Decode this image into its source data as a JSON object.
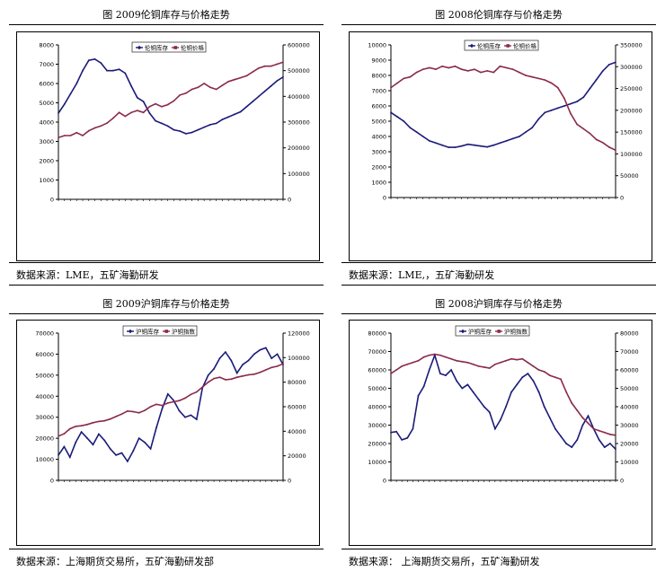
{
  "panels": [
    {
      "title": "图  2009伦铜库存与价格走势",
      "source": "数据来源：LME，五矿海勤研发"
    },
    {
      "title": "图  2008伦铜库存与价格走势",
      "source": "数据来源：LME,，五矿海勤研发"
    },
    {
      "title": "图  2009沪铜库存与价格走势",
      "source": "数据来源：上海期货交易所，五矿海勤研发部"
    },
    {
      "title": "图       2008沪铜库存与价格走势",
      "source": "数据来源：    上海期货交易所，五矿海勤研发"
    }
  ],
  "colors": {
    "inventory": "#1a1a7a",
    "price": "#8a2a4a"
  },
  "chart_data": [
    {
      "type": "line",
      "title": "",
      "y_left": {
        "lim": [
          0,
          8000
        ],
        "ticks": [
          0,
          1000,
          2000,
          3000,
          4000,
          5000,
          6000,
          7000,
          8000
        ]
      },
      "y_right": {
        "lim": [
          0,
          600000
        ],
        "ticks": [
          0,
          100000,
          200000,
          300000,
          400000,
          500000,
          600000
        ]
      },
      "legend": [
        "伦铜库存",
        "伦铜价格"
      ],
      "legend_position": "top-center",
      "series": [
        {
          "name": "伦铜库存",
          "axis": "right",
          "values": [
            335000,
            370000,
            410000,
            450000,
            500000,
            540000,
            545000,
            530000,
            500000,
            500000,
            505000,
            490000,
            440000,
            395000,
            380000,
            335000,
            305000,
            295000,
            285000,
            270000,
            265000,
            255000,
            260000,
            270000,
            280000,
            290000,
            295000,
            310000,
            320000,
            330000,
            340000,
            360000,
            380000,
            400000,
            420000,
            440000,
            460000,
            475000
          ]
        },
        {
          "name": "伦铜价格",
          "axis": "left",
          "values": [
            3200,
            3300,
            3300,
            3450,
            3300,
            3550,
            3700,
            3800,
            3950,
            4200,
            4500,
            4300,
            4500,
            4600,
            4500,
            4800,
            4950,
            4800,
            4900,
            5100,
            5400,
            5500,
            5700,
            5800,
            6000,
            5800,
            5700,
            5900,
            6100,
            6200,
            6300,
            6400,
            6600,
            6800,
            6900,
            6900,
            7000,
            7100
          ]
        }
      ]
    },
    {
      "type": "line",
      "title": "",
      "y_left": {
        "lim": [
          0,
          10000
        ],
        "ticks": [
          0,
          1000,
          2000,
          3000,
          4000,
          5000,
          6000,
          7000,
          8000,
          9000,
          10000
        ]
      },
      "y_right": {
        "lim": [
          0,
          350000
        ],
        "ticks": [
          0,
          50000,
          100000,
          150000,
          200000,
          250000,
          300000,
          350000
        ]
      },
      "legend": [
        "伦铜库存",
        "伦铜价格"
      ],
      "legend_position": "top-center",
      "series": [
        {
          "name": "伦铜库存",
          "axis": "right",
          "values": [
            195000,
            185000,
            175000,
            160000,
            150000,
            140000,
            130000,
            125000,
            120000,
            115000,
            115000,
            118000,
            122000,
            120000,
            118000,
            116000,
            120000,
            125000,
            130000,
            135000,
            140000,
            150000,
            160000,
            180000,
            195000,
            200000,
            205000,
            210000,
            215000,
            220000,
            230000,
            250000,
            270000,
            290000,
            305000,
            310000
          ]
        },
        {
          "name": "伦铜价格",
          "axis": "left",
          "values": [
            7200,
            7500,
            7800,
            7900,
            8200,
            8400,
            8500,
            8400,
            8600,
            8500,
            8600,
            8400,
            8300,
            8400,
            8200,
            8300,
            8200,
            8600,
            8500,
            8400,
            8200,
            8000,
            7900,
            7800,
            7700,
            7500,
            7200,
            6500,
            5500,
            4800,
            4500,
            4200,
            3800,
            3600,
            3300,
            3100
          ]
        }
      ]
    },
    {
      "type": "line",
      "title": "",
      "y_left": {
        "lim": [
          0,
          70000
        ],
        "ticks": [
          0,
          10000,
          20000,
          30000,
          40000,
          50000,
          60000,
          70000
        ]
      },
      "y_right": {
        "lim": [
          0,
          120000
        ],
        "ticks": [
          0,
          20000,
          40000,
          60000,
          80000,
          100000,
          120000
        ]
      },
      "legend": [
        "沪铜库存",
        "沪铜指数"
      ],
      "legend_position": "top-center",
      "series": [
        {
          "name": "沪铜库存",
          "axis": "left",
          "values": [
            12000,
            16000,
            11000,
            18000,
            23000,
            20000,
            17000,
            22000,
            19000,
            15000,
            12000,
            13000,
            9000,
            14000,
            20000,
            18000,
            15000,
            25000,
            34000,
            41000,
            38000,
            33000,
            30000,
            31000,
            29000,
            44000,
            50000,
            53000,
            58000,
            61000,
            57000,
            51000,
            55000,
            57000,
            60000,
            62000,
            63000,
            58000,
            60000,
            55000
          ]
        },
        {
          "name": "沪铜指数",
          "axis": "right",
          "values": [
            36000,
            38000,
            42000,
            44000,
            44500,
            45500,
            47000,
            48000,
            48500,
            50000,
            52000,
            54000,
            56500,
            56000,
            55000,
            57000,
            60000,
            62000,
            61000,
            63000,
            64000,
            65000,
            67000,
            70000,
            72000,
            76000,
            80000,
            83000,
            84000,
            82000,
            82500,
            84000,
            85000,
            86000,
            86500,
            88000,
            90000,
            92000,
            93000,
            95000
          ]
        }
      ]
    },
    {
      "type": "line",
      "title": "",
      "y_left": {
        "lim": [
          0,
          80000
        ],
        "ticks": [
          0,
          10000,
          20000,
          30000,
          40000,
          50000,
          60000,
          70000,
          80000
        ]
      },
      "y_right": {
        "lim": [
          0,
          80000
        ],
        "ticks": [
          0,
          10000,
          20000,
          30000,
          40000,
          50000,
          60000,
          70000,
          80000
        ]
      },
      "legend": [
        "沪铜库存",
        "沪铜指数"
      ],
      "legend_position": "top-center",
      "series": [
        {
          "name": "沪铜库存",
          "axis": "left",
          "values": [
            26000,
            26500,
            22000,
            23000,
            28000,
            46000,
            51000,
            60000,
            68000,
            58000,
            57000,
            60000,
            54000,
            50000,
            52000,
            48000,
            44000,
            40000,
            37000,
            28000,
            33000,
            40000,
            48000,
            52000,
            56000,
            58000,
            54000,
            48000,
            40000,
            34000,
            28000,
            24000,
            20000,
            18000,
            22000,
            30000,
            35000,
            28000,
            22000,
            18000,
            20000,
            17000
          ]
        },
        {
          "name": "沪铜指数",
          "axis": "right",
          "values": [
            58000,
            60000,
            62000,
            63000,
            64000,
            65000,
            67000,
            68000,
            68500,
            68000,
            67000,
            66000,
            65000,
            64500,
            64000,
            63000,
            62000,
            61500,
            61000,
            63000,
            64000,
            65000,
            66000,
            65500,
            66000,
            64000,
            62000,
            60000,
            59000,
            57000,
            56000,
            55000,
            48000,
            42000,
            38000,
            34000,
            31000,
            28000,
            27000,
            26000,
            25000,
            24500
          ]
        }
      ]
    }
  ]
}
